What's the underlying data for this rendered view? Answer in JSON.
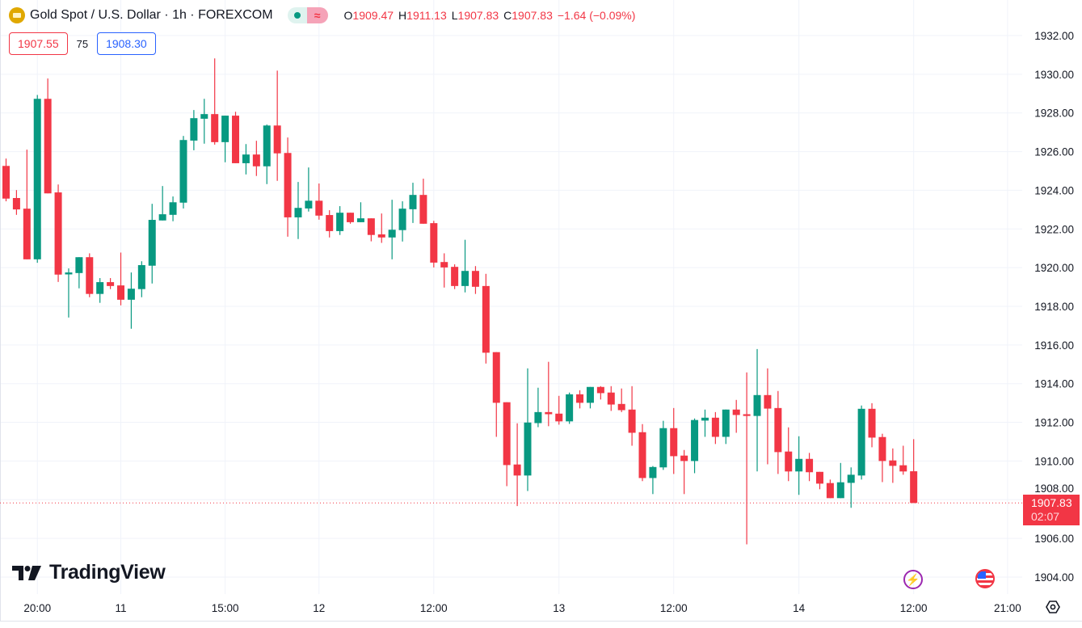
{
  "header": {
    "symbol_title": "Gold Spot / U.S. Dollar · 1h · FOREXCOM",
    "ohlc": {
      "o_label": "O",
      "o": "1909.47",
      "h_label": "H",
      "h": "1911.13",
      "l_label": "L",
      "l": "1907.83",
      "c_label": "C",
      "c": "1907.83",
      "change": "−1.64 (−0.09%)"
    },
    "toggle_icon": "≈"
  },
  "trade": {
    "bid": "1907.55",
    "spread": "75",
    "ask": "1908.30"
  },
  "logo": "TradingView",
  "last_price": {
    "price": "1907.83",
    "countdown": "02:07"
  },
  "colors": {
    "up": "#089981",
    "down": "#f23645",
    "grid": "#f0f3fa",
    "text": "#131722"
  },
  "icons": [
    "gold-icon",
    "lightning-icon",
    "us-flag-icon",
    "settings-icon"
  ],
  "chart_data": {
    "type": "candlestick",
    "title": "Gold Spot / U.S. Dollar · 1h · FOREXCOM",
    "ylim": [
      1903.12,
      1933.84
    ],
    "y_ticks": [
      "1904.00",
      "1906.00",
      "1908.00",
      "1910.00",
      "1912.00",
      "1914.00",
      "1916.00",
      "1918.00",
      "1920.00",
      "1922.00",
      "1924.00",
      "1926.00",
      "1928.00",
      "1930.00",
      "1932.00"
    ],
    "x_ticks": [
      {
        "label": "20:00",
        "bar": 3
      },
      {
        "label": "11",
        "bar": 11
      },
      {
        "label": "15:00",
        "bar": 21
      },
      {
        "label": "12",
        "bar": 30
      },
      {
        "label": "12:00",
        "bar": 41
      },
      {
        "label": "13",
        "bar": 53
      },
      {
        "label": "12:00",
        "bar": 64
      },
      {
        "label": "14",
        "bar": 76
      },
      {
        "label": "12:00",
        "bar": 87
      },
      {
        "label": "21:00",
        "bar": 96
      }
    ],
    "bars_visible": 98,
    "ohlc": [
      [
        1925.26,
        1925.64,
        1923.43,
        1923.57
      ],
      [
        1923.6,
        1924.01,
        1922.73,
        1923.01
      ],
      [
        1923.05,
        1926.1,
        1920.43,
        1920.43
      ],
      [
        1920.43,
        1928.93,
        1920.25,
        1928.73
      ],
      [
        1928.73,
        1929.78,
        1923.84,
        1923.84
      ],
      [
        1923.89,
        1924.3,
        1919.26,
        1919.64
      ],
      [
        1919.65,
        1919.96,
        1917.42,
        1919.75
      ],
      [
        1919.72,
        1920.54,
        1918.93,
        1920.54
      ],
      [
        1920.54,
        1920.74,
        1918.47,
        1918.64
      ],
      [
        1918.64,
        1919.46,
        1918.18,
        1919.25
      ],
      [
        1919.25,
        1919.46,
        1918.89,
        1919.05
      ],
      [
        1919.08,
        1920.78,
        1918.05,
        1918.34
      ],
      [
        1918.34,
        1919.75,
        1916.84,
        1918.91
      ],
      [
        1918.89,
        1920.33,
        1918.47,
        1920.13
      ],
      [
        1920.1,
        1923.3,
        1919.18,
        1922.47
      ],
      [
        1922.44,
        1924.22,
        1922.44,
        1922.76
      ],
      [
        1922.73,
        1923.68,
        1922.4,
        1923.38
      ],
      [
        1923.36,
        1926.81,
        1923.06,
        1926.6
      ],
      [
        1926.57,
        1928.15,
        1926.07,
        1927.73
      ],
      [
        1927.7,
        1928.73,
        1926.41,
        1927.94
      ],
      [
        1927.94,
        1930.82,
        1926.36,
        1926.49
      ],
      [
        1926.49,
        1927.86,
        1925.45,
        1927.86
      ],
      [
        1927.86,
        1928.06,
        1925.4,
        1925.4
      ],
      [
        1925.4,
        1926.39,
        1924.82,
        1925.85
      ],
      [
        1925.85,
        1926.56,
        1924.74,
        1925.24
      ],
      [
        1925.24,
        1927.4,
        1924.32,
        1927.35
      ],
      [
        1927.35,
        1930.19,
        1924.49,
        1925.91
      ],
      [
        1925.93,
        1926.73,
        1921.6,
        1922.6
      ],
      [
        1922.6,
        1924.43,
        1921.48,
        1923.09
      ],
      [
        1923.06,
        1925.18,
        1922.9,
        1923.46
      ],
      [
        1923.46,
        1924.35,
        1922.48,
        1922.69
      ],
      [
        1922.72,
        1922.97,
        1921.56,
        1921.89
      ],
      [
        1921.89,
        1923.18,
        1921.69,
        1922.84
      ],
      [
        1922.84,
        1922.84,
        1922.27,
        1922.35
      ],
      [
        1922.35,
        1923.38,
        1922.35,
        1922.55
      ],
      [
        1922.55,
        1922.55,
        1921.36,
        1921.69
      ],
      [
        1921.72,
        1922.8,
        1921.28,
        1921.56
      ],
      [
        1921.56,
        1923.51,
        1920.43,
        1921.96
      ],
      [
        1921.94,
        1923.43,
        1921.35,
        1923.05
      ],
      [
        1923.02,
        1924.39,
        1922.31,
        1923.76
      ],
      [
        1923.76,
        1924.6,
        1922.27,
        1922.27
      ],
      [
        1922.3,
        1922.42,
        1920.01,
        1920.26
      ],
      [
        1920.29,
        1920.74,
        1918.97,
        1920.01
      ],
      [
        1920.04,
        1920.17,
        1918.89,
        1919.05
      ],
      [
        1919.05,
        1921.44,
        1918.72,
        1919.83
      ],
      [
        1919.83,
        1920.08,
        1918.64,
        1919.01
      ],
      [
        1919.05,
        1919.68,
        1915.04,
        1915.6
      ],
      [
        1915.63,
        1915.63,
        1911.25,
        1913.01
      ],
      [
        1913.04,
        1913.04,
        1908.7,
        1909.79
      ],
      [
        1909.82,
        1911.95,
        1907.67,
        1909.25
      ],
      [
        1909.25,
        1914.79,
        1908.45,
        1911.99
      ],
      [
        1911.96,
        1913.79,
        1911.75,
        1912.53
      ],
      [
        1912.53,
        1915.13,
        1911.8,
        1912.42
      ],
      [
        1912.45,
        1913.37,
        1911.88,
        1912.05
      ],
      [
        1912.05,
        1913.54,
        1911.92,
        1913.45
      ],
      [
        1913.45,
        1913.66,
        1912.72,
        1913.01
      ],
      [
        1913.01,
        1913.83,
        1912.72,
        1913.83
      ],
      [
        1913.83,
        1913.87,
        1913.18,
        1913.51
      ],
      [
        1913.54,
        1913.87,
        1912.59,
        1912.92
      ],
      [
        1912.95,
        1913.75,
        1912.53,
        1912.63
      ],
      [
        1912.66,
        1913.87,
        1910.79,
        1911.46
      ],
      [
        1911.49,
        1911.91,
        1908.96,
        1909.12
      ],
      [
        1909.12,
        1909.74,
        1908.29,
        1909.69
      ],
      [
        1909.67,
        1912.08,
        1909.54,
        1911.7
      ],
      [
        1911.7,
        1912.74,
        1909.33,
        1910.25
      ],
      [
        1910.28,
        1910.57,
        1908.29,
        1910.0
      ],
      [
        1910.0,
        1912.2,
        1909.37,
        1912.12
      ],
      [
        1912.09,
        1912.66,
        1911.25,
        1912.24
      ],
      [
        1912.24,
        1912.53,
        1910.88,
        1911.25
      ],
      [
        1911.25,
        1912.66,
        1910.88,
        1912.66
      ],
      [
        1912.66,
        1913.16,
        1911.46,
        1912.38
      ],
      [
        1912.42,
        1914.58,
        1905.69,
        1912.33
      ],
      [
        1912.33,
        1915.79,
        1909.46,
        1913.41
      ],
      [
        1913.41,
        1914.79,
        1909.83,
        1912.71
      ],
      [
        1912.74,
        1913.62,
        1909.33,
        1910.46
      ],
      [
        1910.49,
        1911.74,
        1908.96,
        1909.46
      ],
      [
        1909.46,
        1911.28,
        1908.25,
        1910.11
      ],
      [
        1910.11,
        1910.42,
        1908.96,
        1909.42
      ],
      [
        1909.44,
        1909.44,
        1908.54,
        1908.83
      ],
      [
        1908.86,
        1909.04,
        1908.08,
        1908.08
      ],
      [
        1908.08,
        1909.9,
        1908.08,
        1908.9
      ],
      [
        1908.87,
        1909.67,
        1907.58,
        1909.29
      ],
      [
        1909.25,
        1912.87,
        1909.04,
        1912.7
      ],
      [
        1912.7,
        1912.99,
        1910.71,
        1911.21
      ],
      [
        1911.24,
        1911.41,
        1908.91,
        1910.0
      ],
      [
        1910.03,
        1910.65,
        1908.87,
        1909.75
      ],
      [
        1909.78,
        1910.79,
        1909.29,
        1909.46
      ],
      [
        1909.47,
        1911.13,
        1907.83,
        1907.83
      ]
    ]
  }
}
